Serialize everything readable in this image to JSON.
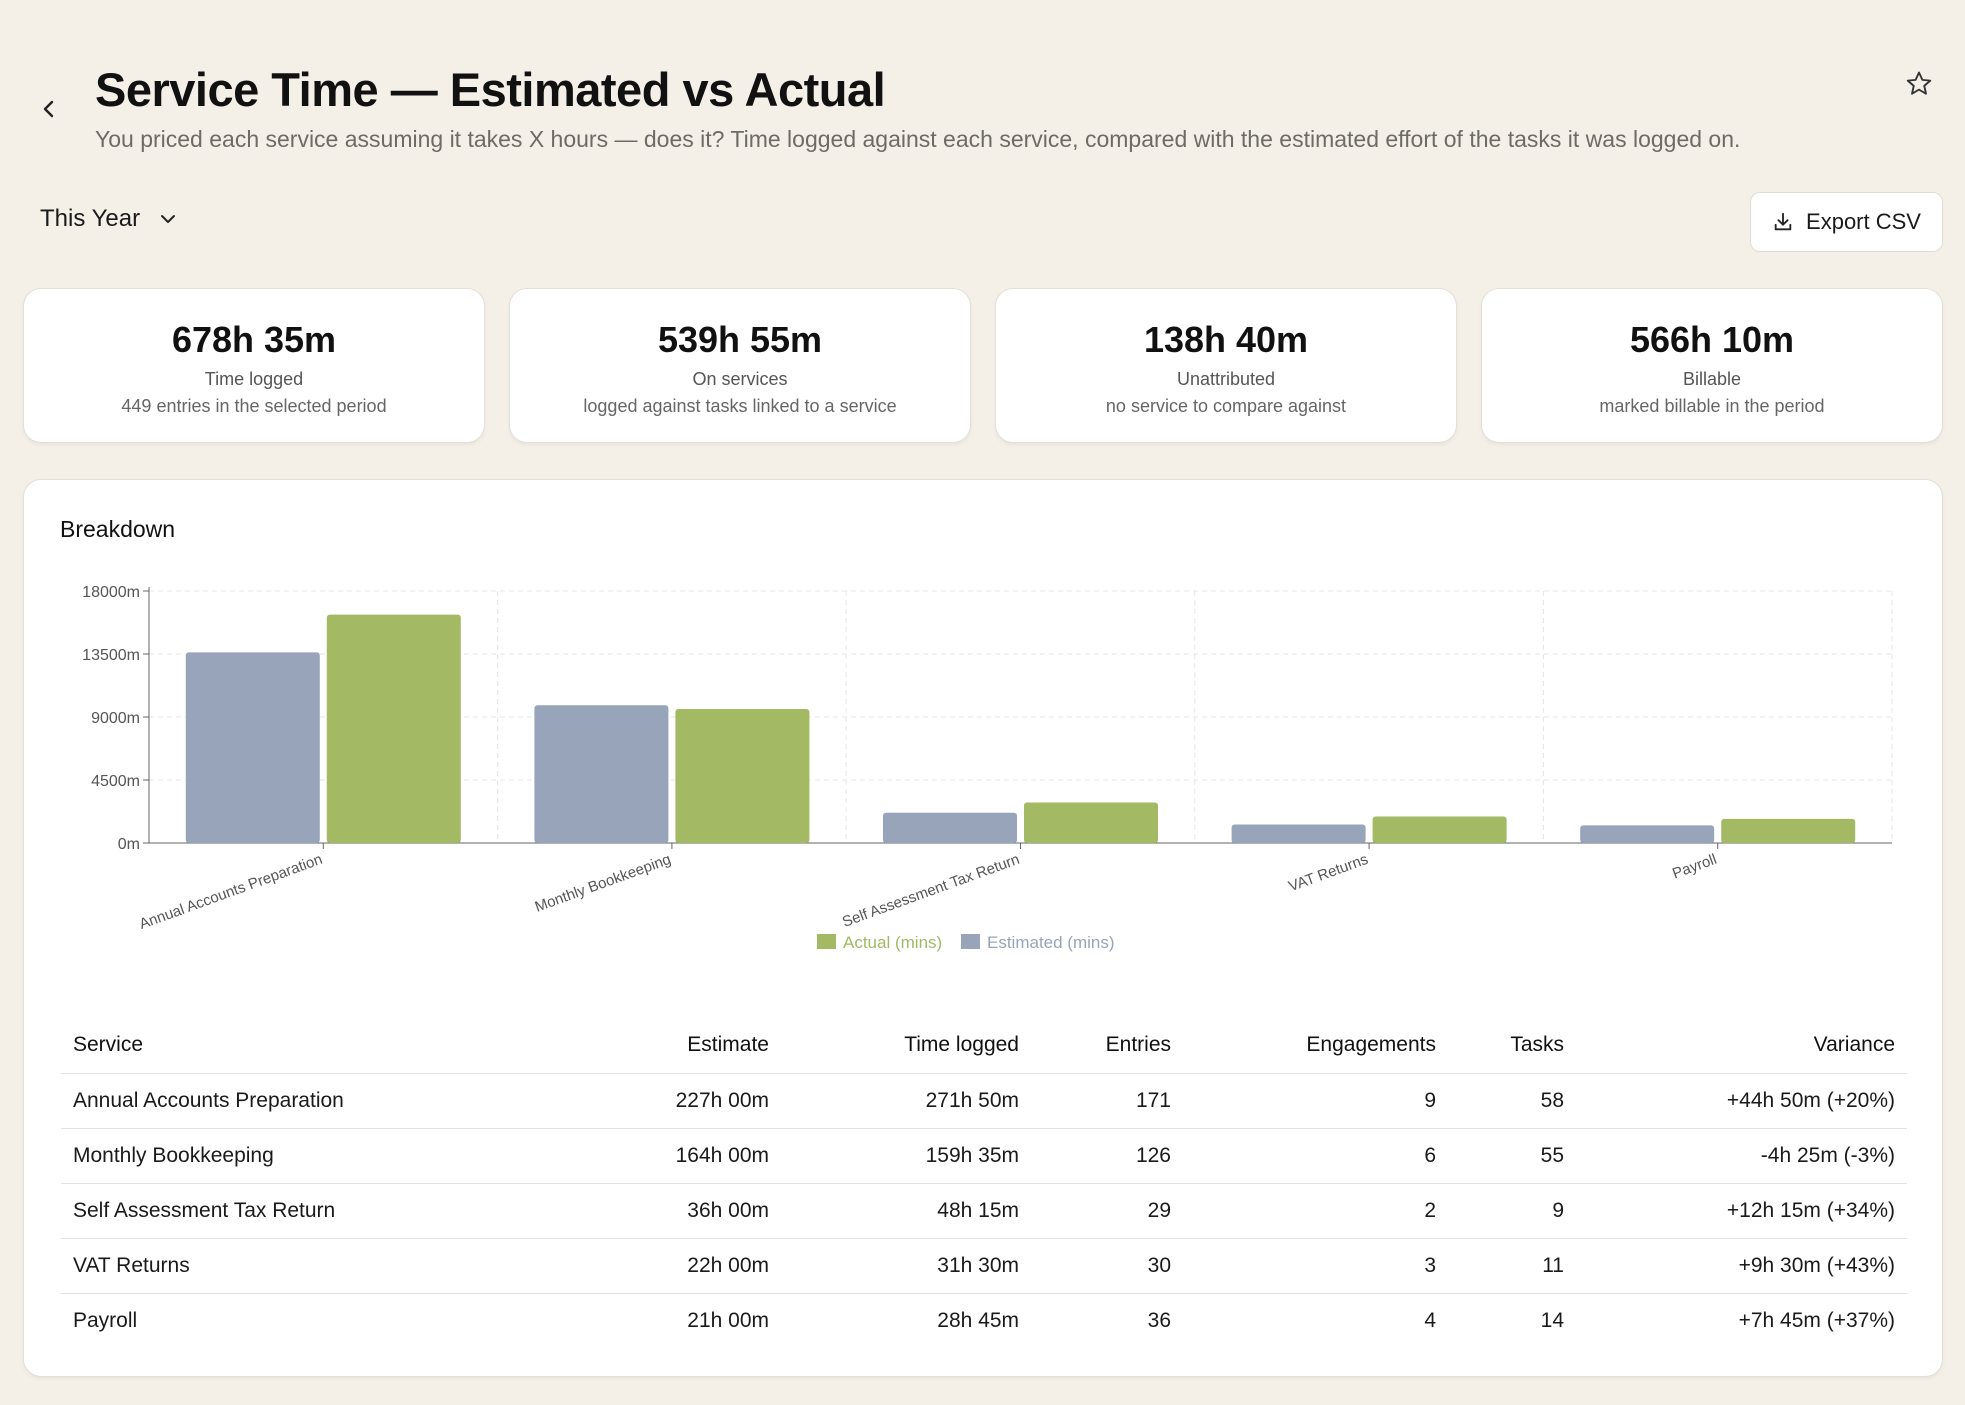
{
  "header": {
    "title": "Service Time — Estimated vs Actual",
    "subtitle": "You priced each service assuming it takes X hours — does it? Time logged against each service, compared with the estimated effort of the tasks it was logged on."
  },
  "filters": {
    "period": "This Year"
  },
  "actions": {
    "export_label": "Export CSV"
  },
  "stats": [
    {
      "value": "678h 35m",
      "label": "Time logged",
      "sub": "449 entries in the selected period"
    },
    {
      "value": "539h 55m",
      "label": "On services",
      "sub": "logged against tasks linked to a service"
    },
    {
      "value": "138h 40m",
      "label": "Unattributed",
      "sub": "no service to compare against"
    },
    {
      "value": "566h 10m",
      "label": "Billable",
      "sub": "marked billable in the period"
    }
  ],
  "breakdown": {
    "title": "Breakdown"
  },
  "chart_data": {
    "type": "bar",
    "categories": [
      "Annual Accounts Preparation",
      "Monthly Bookkeeping",
      "Self Assessment Tax Return",
      "VAT Returns",
      "Payroll"
    ],
    "series": [
      {
        "name": "Estimated (mins)",
        "color": "#97a4ba",
        "values": [
          13620,
          9840,
          2160,
          1320,
          1260
        ]
      },
      {
        "name": "Actual (mins)",
        "color": "#a3b963",
        "values": [
          16310,
          9575,
          2895,
          1890,
          1725
        ]
      }
    ],
    "legend": [
      "Actual (mins)",
      "Estimated (mins)"
    ],
    "legend_position": "bottom",
    "ylim": [
      0,
      18000
    ],
    "yticks": [
      0,
      4500,
      9000,
      13500,
      18000
    ],
    "ytick_labels": [
      "0m",
      "4500m",
      "9000m",
      "13500m",
      "18000m"
    ],
    "grid": true
  },
  "table": {
    "columns": [
      "Service",
      "Estimate",
      "Time logged",
      "Entries",
      "Engagements",
      "Tasks",
      "Variance"
    ],
    "rows": [
      {
        "service": "Annual Accounts Preparation",
        "estimate": "227h 00m",
        "logged": "271h 50m",
        "entries": "171",
        "engagements": "9",
        "tasks": "58",
        "variance": "+44h 50m (+20%)",
        "trend": "over"
      },
      {
        "service": "Monthly Bookkeeping",
        "estimate": "164h 00m",
        "logged": "159h 35m",
        "entries": "126",
        "engagements": "6",
        "tasks": "55",
        "variance": "-4h 25m (-3%)",
        "trend": "under"
      },
      {
        "service": "Self Assessment Tax Return",
        "estimate": "36h 00m",
        "logged": "48h 15m",
        "entries": "29",
        "engagements": "2",
        "tasks": "9",
        "variance": "+12h 15m (+34%)",
        "trend": "over"
      },
      {
        "service": "VAT Returns",
        "estimate": "22h 00m",
        "logged": "31h 30m",
        "entries": "30",
        "engagements": "3",
        "tasks": "11",
        "variance": "+9h 30m (+43%)",
        "trend": "over"
      },
      {
        "service": "Payroll",
        "estimate": "21h 00m",
        "logged": "28h 45m",
        "entries": "36",
        "engagements": "4",
        "tasks": "14",
        "variance": "+7h 45m (+37%)",
        "trend": "over"
      }
    ]
  }
}
